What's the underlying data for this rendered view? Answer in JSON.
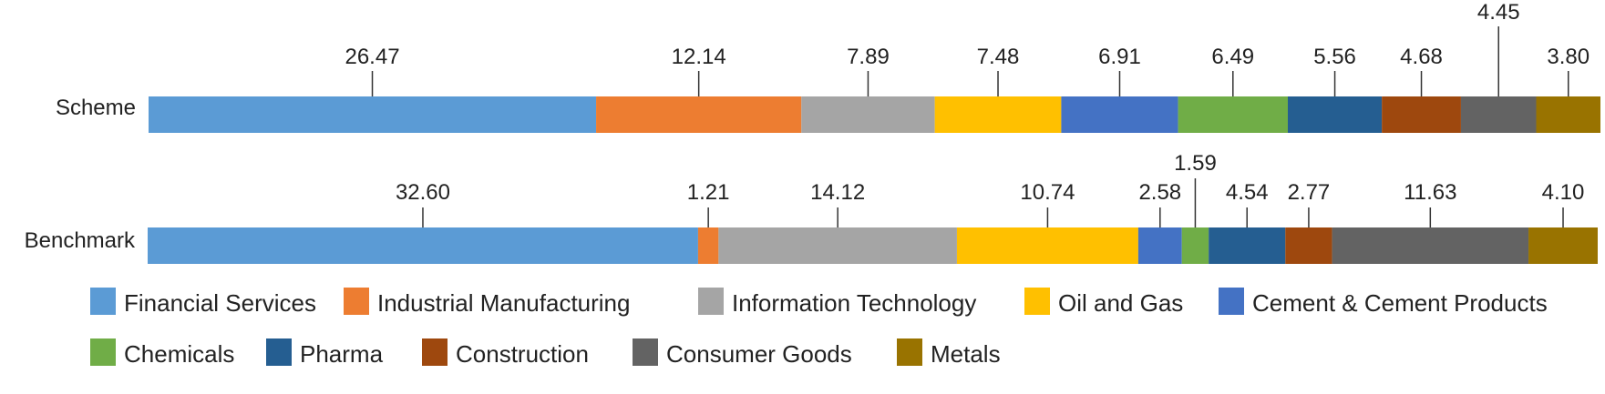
{
  "chart_data": {
    "type": "bar",
    "orientation": "horizontal",
    "stacked": true,
    "categories": [
      "Scheme",
      "Benchmark"
    ],
    "series": [
      {
        "name": "Financial Services",
        "color": "#5B9BD5",
        "values": [
          26.47,
          32.6
        ]
      },
      {
        "name": "Industrial Manufacturing",
        "color": "#ED7D31",
        "values": [
          12.14,
          1.21
        ]
      },
      {
        "name": "Information Technology",
        "color": "#A5A5A5",
        "values": [
          7.89,
          14.12
        ]
      },
      {
        "name": "Oil and Gas",
        "color": "#FFC000",
        "values": [
          7.48,
          10.74
        ]
      },
      {
        "name": "Cement & Cement Products",
        "color": "#4472C4",
        "values": [
          6.91,
          2.58
        ]
      },
      {
        "name": "Chemicals",
        "color": "#70AD47",
        "values": [
          6.49,
          1.59
        ]
      },
      {
        "name": "Pharma",
        "color": "#255E91",
        "values": [
          5.56,
          4.54
        ]
      },
      {
        "name": "Construction",
        "color": "#9E480E",
        "values": [
          4.68,
          2.77
        ]
      },
      {
        "name": "Consumer Goods",
        "color": "#636363",
        "values": [
          4.45,
          11.63
        ]
      },
      {
        "name": "Metals",
        "color": "#997300",
        "values": [
          3.8,
          4.1
        ]
      }
    ],
    "value_labels": [
      [
        "26.47",
        "12.14",
        "7.89",
        "7.48",
        "6.91",
        "6.49",
        "5.56",
        "4.68",
        "4.45",
        "3.80"
      ],
      [
        "32.60",
        "1.21",
        "14.12",
        "10.74",
        "2.58",
        "1.59",
        "4.54",
        "2.77",
        "11.63",
        "4.10"
      ]
    ],
    "legend_position": "bottom",
    "grid": false
  }
}
